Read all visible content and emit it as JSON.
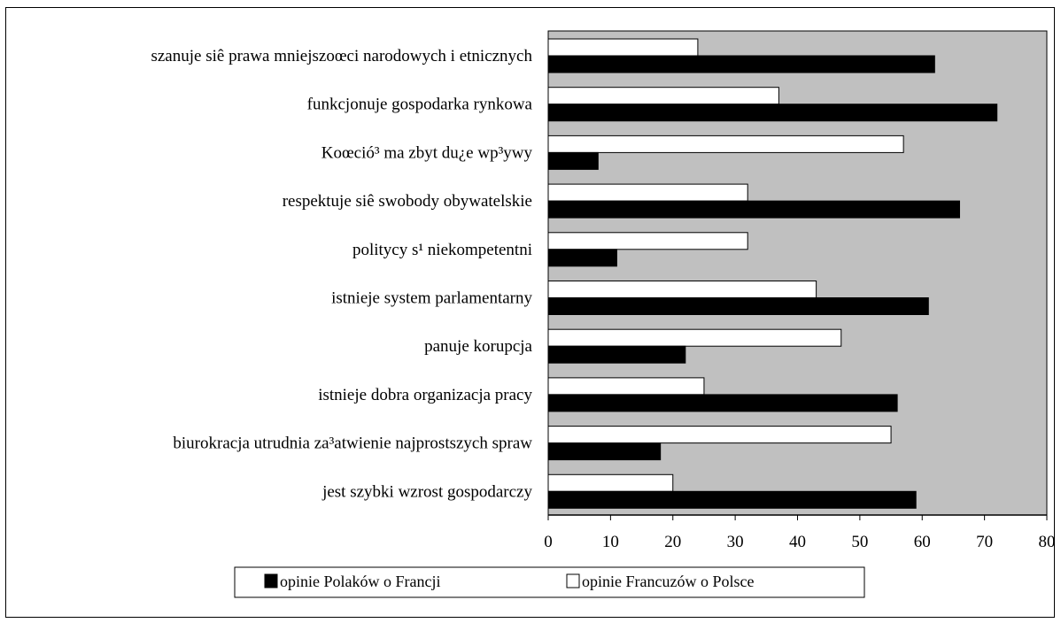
{
  "chart_data": {
    "type": "bar",
    "orientation": "horizontal",
    "categories": [
      "szanuje siê prawa mniejszoœci narodowych i etnicznych",
      "funkcjonuje gospodarka rynkowa",
      "Koœció³ ma zbyt du¿e wp³ywy",
      "respektuje siê swobody obywatelskie",
      "politycy s¹ niekompetentni",
      "istnieje system parlamentarny",
      "panuje korupcja",
      "istnieje dobra organizacja pracy",
      "biurokracja utrudnia za³atwienie najprostszych spraw",
      "jest szybki wzrost gospodarczy"
    ],
    "series": [
      {
        "name": "opinie Francuzów o Polsce",
        "color": "#ffffff",
        "values": [
          24,
          37,
          57,
          32,
          32,
          43,
          47,
          25,
          55,
          20
        ]
      },
      {
        "name": "opinie Polaków o Francji",
        "color": "#000000",
        "values": [
          62,
          72,
          8,
          66,
          11,
          61,
          22,
          56,
          18,
          59
        ]
      }
    ],
    "xlim": [
      0,
      80
    ],
    "xticks": [
      0,
      10,
      20,
      30,
      40,
      50,
      60,
      70,
      80
    ],
    "plot_background": "#c0c0c0",
    "grid": false,
    "legend": {
      "placement": "bottom",
      "order": [
        "opinie Polaków o Francji",
        "opinie Francuzów o Polsce"
      ]
    }
  }
}
